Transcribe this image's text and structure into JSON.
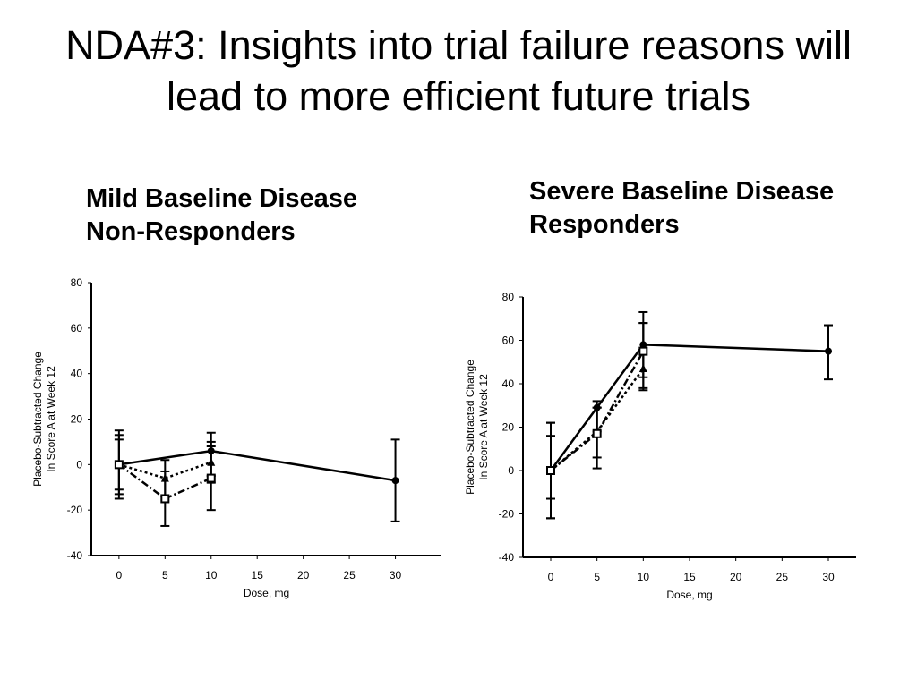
{
  "slide": {
    "title_line1": "NDA#3: Insights into trial failure reasons will",
    "title_line2": "lead to more efficient future trials"
  },
  "panels": {
    "left": {
      "title_line1": "Mild Baseline Disease",
      "title_line2": "Non-Responders"
    },
    "right": {
      "title_line1": "Severe Baseline Disease",
      "title_line2": "Responders"
    }
  },
  "chart_data": [
    {
      "type": "line",
      "title": "Mild Baseline Disease Non-Responders",
      "xlabel": "Dose, mg",
      "ylabel_line1": "Placebo-Subtracted Change",
      "ylabel_line2": "In Score A at Week 12",
      "xlim": [
        -3,
        35
      ],
      "ylim": [
        -40,
        80
      ],
      "xticks": [
        0,
        5,
        10,
        15,
        20,
        25,
        30
      ],
      "yticks": [
        -40,
        -20,
        0,
        20,
        40,
        60,
        80
      ],
      "grid": false,
      "series": [
        {
          "marker": "circle-filled",
          "dash": "solid",
          "x": [
            0,
            10,
            30
          ],
          "y": [
            0,
            6,
            -7
          ],
          "err_low": [
            -15,
            -5,
            -25
          ],
          "err_high": [
            15,
            14,
            11
          ]
        },
        {
          "marker": "triangle-filled",
          "dash": "dotted",
          "x": [
            0,
            5,
            10
          ],
          "y": [
            0,
            -6,
            1
          ],
          "err_low": [
            -13,
            -14,
            -8
          ],
          "err_high": [
            13,
            2,
            10
          ]
        },
        {
          "marker": "square-open",
          "dash": "dashdot",
          "x": [
            0,
            5,
            10
          ],
          "y": [
            0,
            -15,
            -6
          ],
          "err_low": [
            -11,
            -27,
            -20
          ],
          "err_high": [
            11,
            -3,
            8
          ]
        }
      ]
    },
    {
      "type": "line",
      "title": "Severe Baseline Disease Responders",
      "xlabel": "Dose, mg",
      "ylabel_line1": "Placebo-Subtracted Change",
      "ylabel_line2": "In Score A at Week 12",
      "xlim": [
        -3,
        33
      ],
      "ylim": [
        -40,
        80
      ],
      "xticks": [
        0,
        5,
        10,
        15,
        20,
        25,
        30
      ],
      "yticks": [
        -40,
        -20,
        0,
        20,
        40,
        60,
        80
      ],
      "grid": false,
      "series": [
        {
          "marker": "circle-filled",
          "dash": "solid",
          "x": [
            0,
            5,
            10,
            30
          ],
          "y": [
            0,
            29,
            58,
            55
          ],
          "err_low": [
            -22,
            18,
            43,
            42
          ],
          "err_high": [
            22,
            32,
            73,
            67
          ]
        },
        {
          "marker": "triangle-filled",
          "dash": "dotted",
          "x": [
            0,
            5,
            10
          ],
          "y": [
            0,
            18,
            47
          ],
          "err_low": [
            -22,
            6,
            37
          ],
          "err_high": [
            22,
            29,
            68
          ]
        },
        {
          "marker": "square-open",
          "dash": "dashdot",
          "x": [
            0,
            5,
            10
          ],
          "y": [
            0,
            17,
            55
          ],
          "err_low": [
            -13,
            1,
            38
          ],
          "err_high": [
            16,
            29,
            68
          ]
        }
      ]
    }
  ]
}
